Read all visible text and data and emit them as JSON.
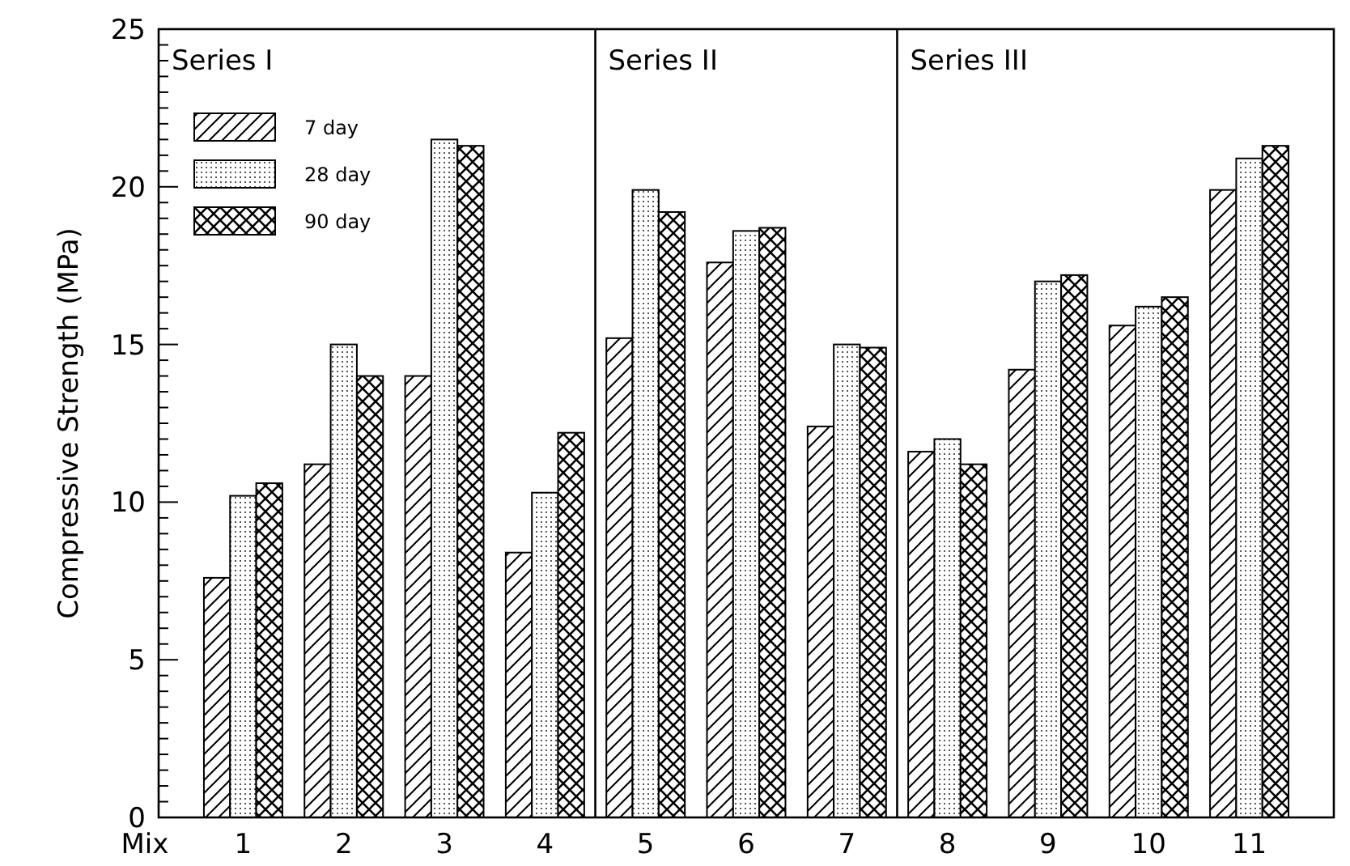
{
  "chart_data": {
    "type": "bar",
    "ylabel": "Compressive Strength (MPa)",
    "xlabel": "Mix",
    "categories": [
      "1",
      "2",
      "3",
      "4",
      "5",
      "6",
      "7",
      "8",
      "9",
      "10",
      "11"
    ],
    "series": [
      {
        "name": "7 day",
        "color": "#000000",
        "values": [
          7.6,
          11.2,
          14.0,
          8.4,
          15.2,
          17.6,
          12.4,
          11.6,
          14.2,
          15.6,
          19.9
        ]
      },
      {
        "name": "28 day",
        "color": "#000000",
        "values": [
          10.2,
          15.0,
          21.5,
          10.3,
          19.9,
          18.6,
          15.0,
          12.0,
          17.0,
          16.2,
          20.9
        ]
      },
      {
        "name": "90 day",
        "color": "#000000",
        "values": [
          10.6,
          14.0,
          21.3,
          12.2,
          19.2,
          18.7,
          14.9,
          11.2,
          17.2,
          16.5,
          21.3
        ]
      }
    ],
    "annotations": [
      "Series I",
      "Series II",
      "Series III"
    ],
    "ylim": [
      0,
      25
    ],
    "yticks": [
      0,
      {
        "value": 0.5,
        "label": null
      },
      {
        "value": 1,
        "label": null
      },
      {
        "value": 1.5,
        "label": null
      },
      {
        "value": 2,
        "label": null
      },
      {
        "value": 2.5,
        "label": null
      },
      {
        "value": 3,
        "label": null
      },
      {
        "value": 3.5,
        "label": null
      },
      {
        "value": 4,
        "label": null
      },
      {
        "value": 4.5,
        "label": null
      },
      5,
      {
        "value": 5.5,
        "label": null
      },
      {
        "value": 6,
        "label": null
      },
      {
        "value": 6.5,
        "label": null
      },
      {
        "value": 7,
        "label": null
      },
      {
        "value": 7.5,
        "label": null
      },
      {
        "value": 8,
        "label": null
      },
      {
        "value": 8.5,
        "label": null
      },
      {
        "value": 9,
        "label": null
      },
      {
        "value": 9.5,
        "label": null
      },
      10,
      {
        "value": 10.5,
        "label": null
      },
      {
        "value": 11,
        "label": null
      },
      {
        "value": 11.5,
        "label": null
      },
      {
        "value": 12,
        "label": null
      },
      {
        "value": 12.5,
        "label": null
      },
      {
        "value": 13,
        "label": null
      },
      {
        "value": 13.5,
        "label": null
      },
      {
        "value": 14,
        "label": null
      },
      {
        "value": 14.5,
        "label": null
      },
      15,
      {
        "value": 15.5,
        "label": null
      },
      {
        "value": 16,
        "label": null
      },
      {
        "value": 16.5,
        "label": null
      },
      {
        "value": 17,
        "label": null
      },
      {
        "value": 17.5,
        "label": null
      },
      {
        "value": 18,
        "label": null
      },
      {
        "value": 18.5,
        "label": null
      },
      {
        "value": 19,
        "label": null
      },
      {
        "value": 19.5,
        "label": null
      },
      20,
      {
        "value": 20.5,
        "label": null
      },
      {
        "value": 21,
        "label": null
      },
      {
        "value": 21.5,
        "label": null
      },
      {
        "value": 22,
        "label": null
      },
      {
        "value": 22.5,
        "label": null
      },
      {
        "value": 23,
        "label": null
      },
      {
        "value": 23.5,
        "label": null
      },
      {
        "value": 24,
        "label": null
      },
      {
        "value": 24.5,
        "label": null
      },
      25
    ],
    "grid": false,
    "legend": "top left"
  }
}
